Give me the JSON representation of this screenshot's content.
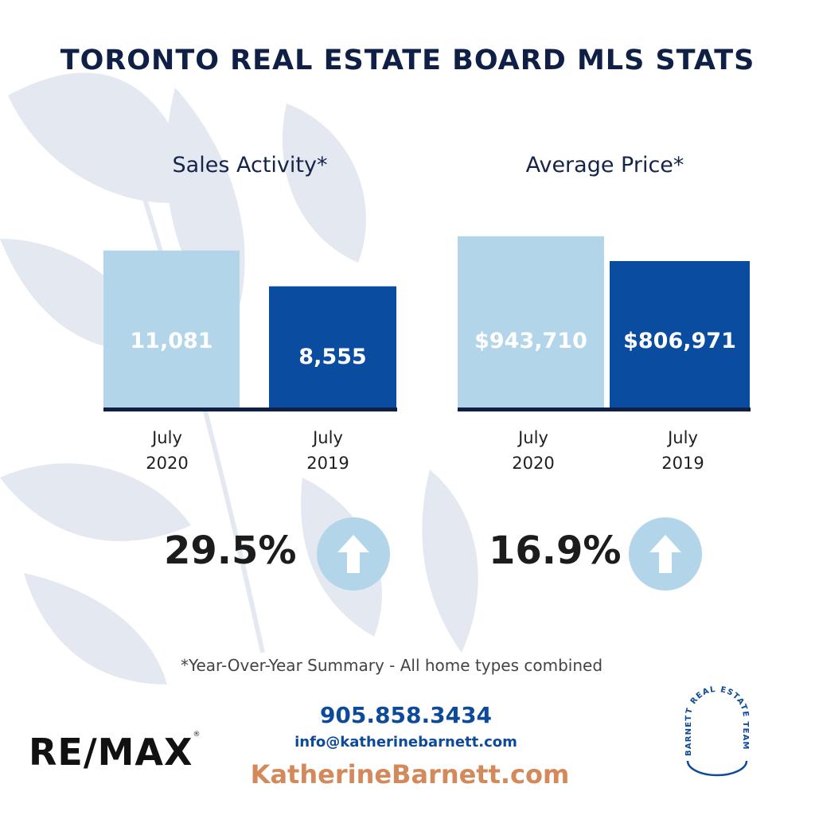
{
  "title": "TORONTO REAL ESTATE BOARD MLS STATS",
  "colors": {
    "light_bar": "#b3d5ea",
    "dark_bar": "#0a4da0",
    "axis": "#0f1f45",
    "leaf": "#e4e9f1"
  },
  "chart_data": [
    {
      "type": "bar",
      "title": "Sales Activity*",
      "categories": [
        "July 2020",
        "July 2019"
      ],
      "category_lines": [
        [
          "July",
          "2020"
        ],
        [
          "July",
          "2019"
        ]
      ],
      "values": [
        11081,
        8555
      ],
      "value_labels": [
        "11,081",
        "8,555"
      ],
      "change": "29.5%",
      "change_icon": "arrow-up-icon"
    },
    {
      "type": "bar",
      "title": "Average Price*",
      "categories": [
        "July 2020",
        "July 2019"
      ],
      "category_lines": [
        [
          "July",
          "2020"
        ],
        [
          "July",
          "2019"
        ]
      ],
      "values": [
        943710,
        806971
      ],
      "value_labels": [
        "$943,710",
        "$806,971"
      ],
      "change": "16.9%",
      "change_icon": "arrow-up-icon"
    }
  ],
  "footnote": "*Year-Over-Year Summary - All home types combined",
  "contact": {
    "phone": "905.858.3434",
    "email": "info@katherinebarnett.com",
    "website": "KatherineBarnett.com"
  },
  "brand": {
    "remax": "RE/MAX",
    "remax_mark": "®",
    "team": "BARNETT REAL ESTATE TEAM"
  }
}
